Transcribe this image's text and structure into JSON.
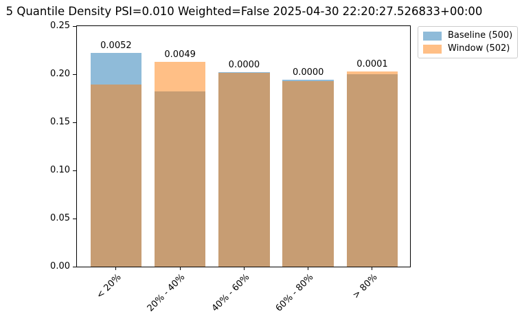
{
  "chart_data": {
    "type": "bar",
    "title": "5 Quantile Density PSI=0.010 Weighted=False 2025-04-30 22:20:27.526833+00:00",
    "psi_total": "0.010",
    "weighted": "False",
    "timestamp": "2025-04-30 22:20:27.526833+00:00",
    "categories": [
      "< 20%",
      "20% - 40%",
      "40% - 60%",
      "60% - 80%",
      "> 80%"
    ],
    "series": [
      {
        "name": "Baseline (500)",
        "color": "#1f77b4",
        "alpha": 0.5,
        "values": [
          0.222,
          0.182,
          0.202,
          0.194,
          0.2
        ]
      },
      {
        "name": "Window (502)",
        "color": "#ff7f0e",
        "alpha": 0.5,
        "values": [
          0.1892,
          0.2131,
          0.2012,
          0.1932,
          0.2032
        ]
      }
    ],
    "bar_value_labels": [
      "0.0052",
      "0.0049",
      "0.0000",
      "0.0000",
      "0.0001"
    ],
    "xlabel": "",
    "ylabel": "",
    "ylim": [
      0,
      0.25
    ],
    "yticks": [
      "0.00",
      "0.05",
      "0.10",
      "0.15",
      "0.20",
      "0.25"
    ],
    "x_tick_rotation": 45,
    "grid": false,
    "overlap_mode": "overlay",
    "bar_width_fraction": 0.8,
    "legend_position": "outside-upper-right",
    "axis_color": "#000000",
    "legend_border_color": "#cccccc",
    "background_color": "#ffffff"
  }
}
